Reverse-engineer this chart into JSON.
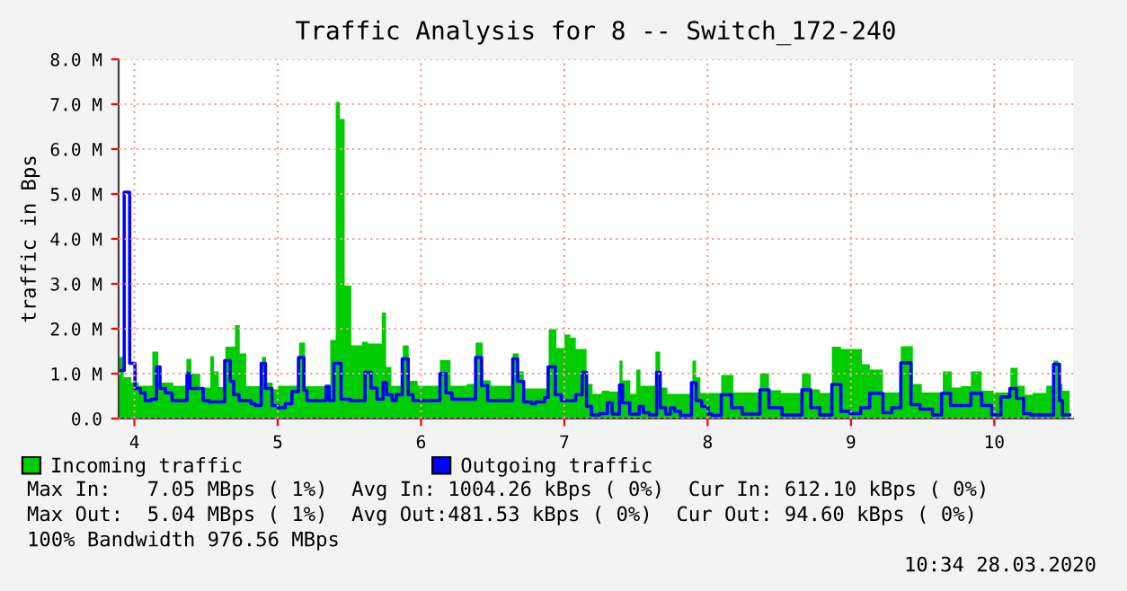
{
  "chart_data": {
    "type": "area",
    "title": "Traffic Analysis for 8 -- Switch_172-240",
    "ylabel": "traffic in Bps",
    "xlim": [
      3.89,
      10.55
    ],
    "xticks": [
      4,
      5,
      6,
      7,
      8,
      9,
      10
    ],
    "ylim": [
      0,
      8.0
    ],
    "yticks": [
      {
        "value": 0,
        "label": "0.0"
      },
      {
        "value": 1,
        "label": "1.0 M"
      },
      {
        "value": 2,
        "label": "2.0 M"
      },
      {
        "value": 3,
        "label": "3.0 M"
      },
      {
        "value": 4,
        "label": "4.0 M"
      },
      {
        "value": 5,
        "label": "5.0 M"
      },
      {
        "value": 6,
        "label": "6.0 M"
      },
      {
        "value": 7,
        "label": "7.0 M"
      },
      {
        "value": 8,
        "label": "8.0 M"
      }
    ],
    "grid": true,
    "legend": "bottom",
    "series": [
      {
        "name": "Incoming traffic",
        "color": "#00cc00",
        "x": [
          3.896,
          3.925,
          3.979,
          4.029,
          4.125,
          4.167,
          4.271,
          4.363,
          4.397,
          4.459,
          4.53,
          4.555,
          4.589,
          4.635,
          4.702,
          4.735,
          4.781,
          4.89,
          4.919,
          4.965,
          5.003,
          5.149,
          5.191,
          5.367,
          5.405,
          5.434,
          5.467,
          5.513,
          5.589,
          5.63,
          5.726,
          5.756,
          5.793,
          5.873,
          5.914,
          5.977,
          6.132,
          6.206,
          6.319,
          6.381,
          6.431,
          6.486,
          6.64,
          6.682,
          6.716,
          6.891,
          6.945,
          7.0,
          7.042,
          7.08,
          7.155,
          7.197,
          7.26,
          7.314,
          7.385,
          7.406,
          7.46,
          7.502,
          7.531,
          7.636,
          7.669,
          7.719,
          7.894,
          7.92,
          7.949,
          8.095,
          8.179,
          8.365,
          8.428,
          8.511,
          8.658,
          8.72,
          8.783,
          8.867,
          8.93,
          9.076,
          9.131,
          9.223,
          9.348,
          9.432,
          9.494,
          9.641,
          9.703,
          9.766,
          9.837,
          9.912,
          9.996,
          10.113,
          10.163,
          10.213,
          10.267,
          10.363,
          10.414,
          10.447,
          10.476,
          10.526
        ],
        "values": [
          1.37,
          0.92,
          0.8,
          0.73,
          1.49,
          0.8,
          0.73,
          1.33,
          1.0,
          0.69,
          1.39,
          1.05,
          0.7,
          1.6,
          2.08,
          1.45,
          0.72,
          1.37,
          0.8,
          0.65,
          0.73,
          1.69,
          0.72,
          1.75,
          7.05,
          6.67,
          2.96,
          1.63,
          1.71,
          1.67,
          2.36,
          1.15,
          0.73,
          1.63,
          0.84,
          0.73,
          1.3,
          0.73,
          0.77,
          1.69,
          0.85,
          0.73,
          1.45,
          1.05,
          0.67,
          1.99,
          1.57,
          1.87,
          1.8,
          1.55,
          0.77,
          0.55,
          0.62,
          0.6,
          1.29,
          0.85,
          0.55,
          1.09,
          0.73,
          1.49,
          0.69,
          0.55,
          1.29,
          0.92,
          0.57,
          0.97,
          0.58,
          1.01,
          0.63,
          0.57,
          1.01,
          0.65,
          0.57,
          1.6,
          1.55,
          1.21,
          1.09,
          0.58,
          1.61,
          0.77,
          0.58,
          1.05,
          0.69,
          0.72,
          1.05,
          0.62,
          0.58,
          1.13,
          0.73,
          0.53,
          0.57,
          0.73,
          1.29,
          0.77,
          0.62,
          0.62
        ]
      },
      {
        "name": "Outgoing traffic",
        "type": "step",
        "color": "#0000ff",
        "x": [
          3.896,
          3.929,
          3.967,
          4.004,
          4.042,
          4.075,
          4.117,
          4.154,
          4.179,
          4.217,
          4.263,
          4.367,
          4.388,
          4.48,
          4.522,
          4.63,
          4.668,
          4.693,
          4.731,
          4.814,
          4.843,
          4.885,
          4.914,
          4.96,
          5.003,
          5.053,
          5.099,
          5.145,
          5.183,
          5.204,
          5.338,
          5.359,
          5.392,
          5.442,
          5.505,
          5.609,
          5.651,
          5.693,
          5.735,
          5.76,
          5.798,
          5.827,
          5.869,
          5.911,
          5.944,
          6.132,
          6.174,
          6.216,
          6.256,
          6.381,
          6.423,
          6.465,
          6.64,
          6.674,
          6.716,
          6.77,
          6.799,
          6.862,
          6.887,
          6.937,
          6.979,
          7.08,
          7.125,
          7.155,
          7.189,
          7.247,
          7.301,
          7.334,
          7.385,
          7.406,
          7.456,
          7.523,
          7.552,
          7.594,
          7.644,
          7.669,
          7.707,
          7.74,
          7.77,
          7.811,
          7.887,
          7.92,
          7.958,
          8.004,
          8.033,
          8.095,
          8.167,
          8.242,
          8.365,
          8.428,
          8.519,
          8.658,
          8.72,
          8.783,
          8.867,
          8.93,
          8.992,
          9.068,
          9.131,
          9.223,
          9.285,
          9.348,
          9.419,
          9.482,
          9.569,
          9.632,
          9.695,
          9.837,
          9.912,
          9.983,
          10.046,
          10.109,
          10.155,
          10.205,
          10.255,
          10.414,
          10.455,
          10.476,
          10.526
        ],
        "values": [
          1.07,
          5.04,
          1.23,
          0.67,
          0.57,
          0.4,
          0.43,
          1.15,
          0.67,
          0.57,
          0.4,
          1.0,
          0.67,
          0.4,
          0.37,
          1.29,
          0.83,
          0.53,
          0.4,
          0.33,
          0.29,
          1.23,
          0.67,
          0.29,
          0.24,
          0.33,
          0.6,
          1.36,
          0.63,
          0.4,
          0.72,
          0.4,
          1.23,
          0.43,
          0.4,
          1.03,
          0.68,
          0.43,
          0.8,
          0.53,
          0.4,
          0.53,
          1.33,
          0.53,
          0.4,
          1.0,
          0.57,
          0.43,
          0.43,
          1.36,
          0.73,
          0.4,
          1.33,
          0.83,
          0.37,
          0.33,
          0.37,
          0.47,
          1.15,
          0.53,
          0.4,
          0.53,
          1.03,
          0.27,
          0.08,
          0.11,
          0.35,
          0.1,
          0.75,
          0.35,
          0.1,
          0.27,
          0.13,
          0.08,
          1.03,
          0.24,
          0.1,
          0.24,
          0.16,
          0.07,
          0.8,
          0.4,
          0.27,
          0.1,
          0.07,
          0.53,
          0.24,
          0.1,
          0.64,
          0.24,
          0.08,
          0.64,
          0.24,
          0.08,
          0.76,
          0.16,
          0.11,
          0.24,
          0.56,
          0.13,
          0.24,
          1.24,
          0.31,
          0.21,
          0.08,
          0.56,
          0.29,
          0.56,
          0.29,
          0.08,
          0.48,
          0.67,
          0.45,
          0.11,
          0.08,
          1.21,
          0.4,
          0.08,
          0.08
        ]
      }
    ],
    "annotations": [
      "Max In:   7.05 MBps ( 1%)  Avg In: 1004.26 kBps ( 0%)  Cur In: 612.10 kBps ( 0%)",
      "Max Out:  5.04 MBps ( 1%)  Avg Out:481.53 kBps ( 0%)  Cur Out: 94.60 kBps ( 0%)",
      "100% Bandwidth 976.56 MBps",
      "10:34 28.03.2020"
    ]
  }
}
